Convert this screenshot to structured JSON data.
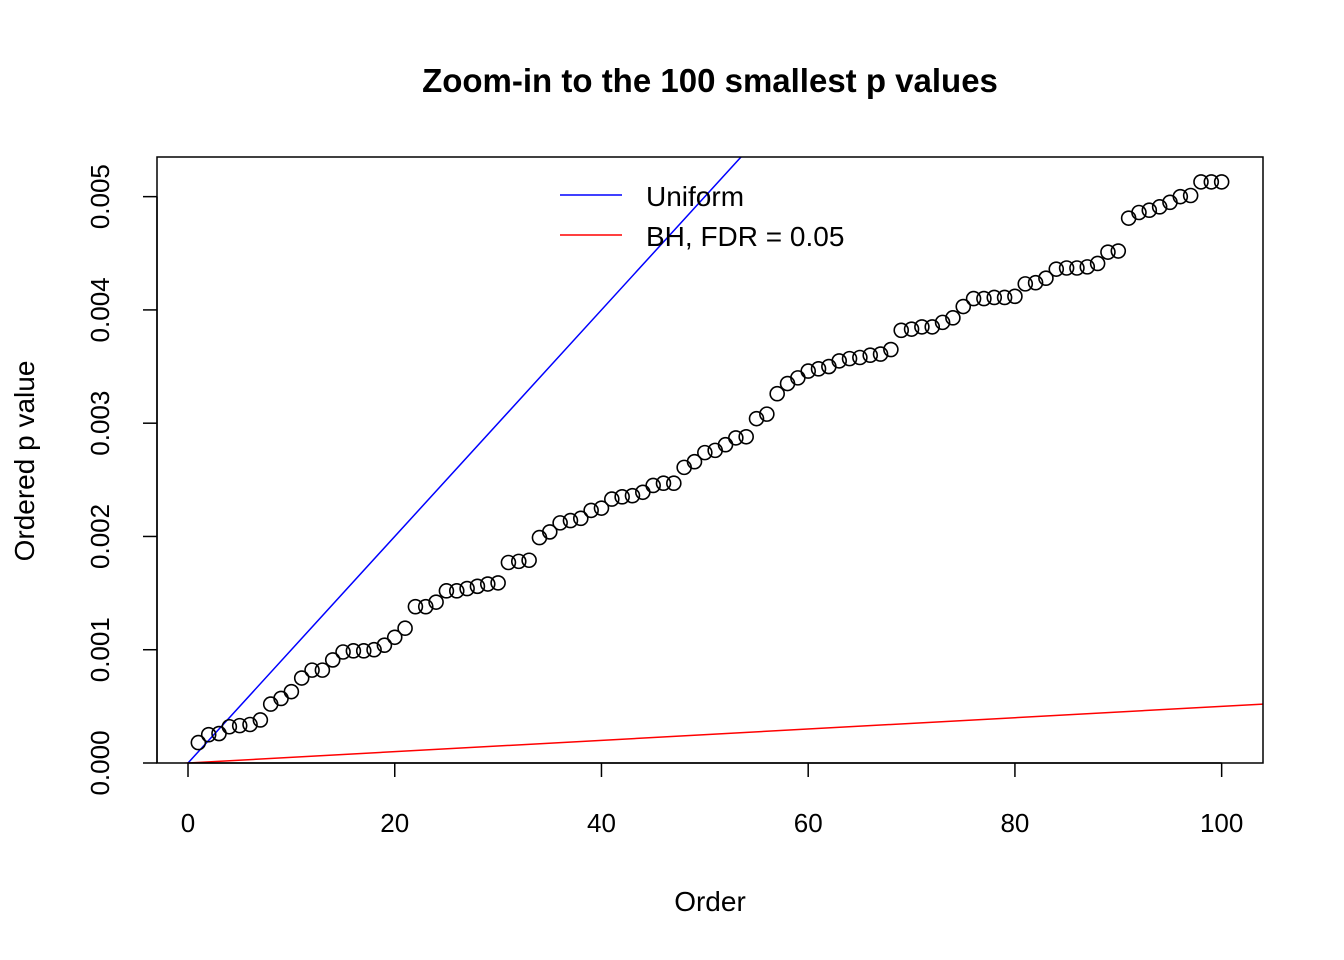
{
  "chart_data": {
    "type": "scatter",
    "title": "Zoom-in to the 100 smallest p values",
    "xlabel": "Order",
    "ylabel": "Ordered p value",
    "xlim": [
      -3,
      104
    ],
    "ylim": [
      0,
      0.00535
    ],
    "x_ticks": [
      0,
      20,
      40,
      60,
      80,
      100
    ],
    "x_tick_labels": [
      "0",
      "20",
      "40",
      "60",
      "80",
      "100"
    ],
    "y_ticks": [
      0,
      0.001,
      0.002,
      0.003,
      0.004,
      0.005
    ],
    "y_tick_labels": [
      "0.000",
      "0.001",
      "0.002",
      "0.003",
      "0.004",
      "0.005"
    ],
    "grid": false,
    "legend_position": "top-center",
    "series": [
      {
        "type": "scatter",
        "marker": "open-circle",
        "color": "#000000",
        "x": [
          1,
          2,
          3,
          4,
          5,
          6,
          7,
          8,
          9,
          10,
          11,
          12,
          13,
          14,
          15,
          16,
          17,
          18,
          19,
          20,
          21,
          22,
          23,
          24,
          25,
          26,
          27,
          28,
          29,
          30,
          31,
          32,
          33,
          34,
          35,
          36,
          37,
          38,
          39,
          40,
          41,
          42,
          43,
          44,
          45,
          46,
          47,
          48,
          49,
          50,
          51,
          52,
          53,
          54,
          55,
          56,
          57,
          58,
          59,
          60,
          61,
          62,
          63,
          64,
          65,
          66,
          67,
          68,
          69,
          70,
          71,
          72,
          73,
          74,
          75,
          76,
          77,
          78,
          79,
          80,
          81,
          82,
          83,
          84,
          85,
          86,
          87,
          88,
          89,
          90,
          91,
          92,
          93,
          94,
          95,
          96,
          97,
          98,
          99,
          100
        ],
        "y": [
          0.00018,
          0.00025,
          0.00026,
          0.00032,
          0.00033,
          0.00034,
          0.00038,
          0.00052,
          0.00057,
          0.00063,
          0.00075,
          0.00082,
          0.00082,
          0.00091,
          0.00098,
          0.00099,
          0.00099,
          0.001,
          0.00104,
          0.00111,
          0.00119,
          0.00138,
          0.00138,
          0.00142,
          0.00152,
          0.00152,
          0.00154,
          0.00156,
          0.00158,
          0.00159,
          0.00177,
          0.00178,
          0.00179,
          0.00199,
          0.00204,
          0.00212,
          0.00214,
          0.00216,
          0.00223,
          0.00225,
          0.00233,
          0.00235,
          0.00236,
          0.00239,
          0.00245,
          0.00247,
          0.00247,
          0.00261,
          0.00266,
          0.00274,
          0.00276,
          0.00281,
          0.00287,
          0.00288,
          0.00304,
          0.00308,
          0.00326,
          0.00335,
          0.0034,
          0.00346,
          0.00348,
          0.0035,
          0.00355,
          0.00357,
          0.00358,
          0.0036,
          0.00361,
          0.00365,
          0.00382,
          0.00383,
          0.00385,
          0.00385,
          0.00389,
          0.00393,
          0.00403,
          0.0041,
          0.0041,
          0.00411,
          0.00411,
          0.00412,
          0.00423,
          0.00424,
          0.00428,
          0.00436,
          0.00437,
          0.00437,
          0.00438,
          0.00441,
          0.00451,
          0.00452,
          0.00481,
          0.00486,
          0.00488,
          0.00491,
          0.00495,
          0.005,
          0.00501,
          0.00513,
          0.00513,
          0.00513
        ]
      },
      {
        "type": "line",
        "name": "Uniform",
        "color": "#0000ff",
        "slope": 0.0001,
        "intercept": 0
      },
      {
        "type": "line",
        "name": "BH, FDR = 0.05",
        "color": "#ff0000",
        "slope": 5e-06,
        "intercept": 0
      }
    ]
  }
}
